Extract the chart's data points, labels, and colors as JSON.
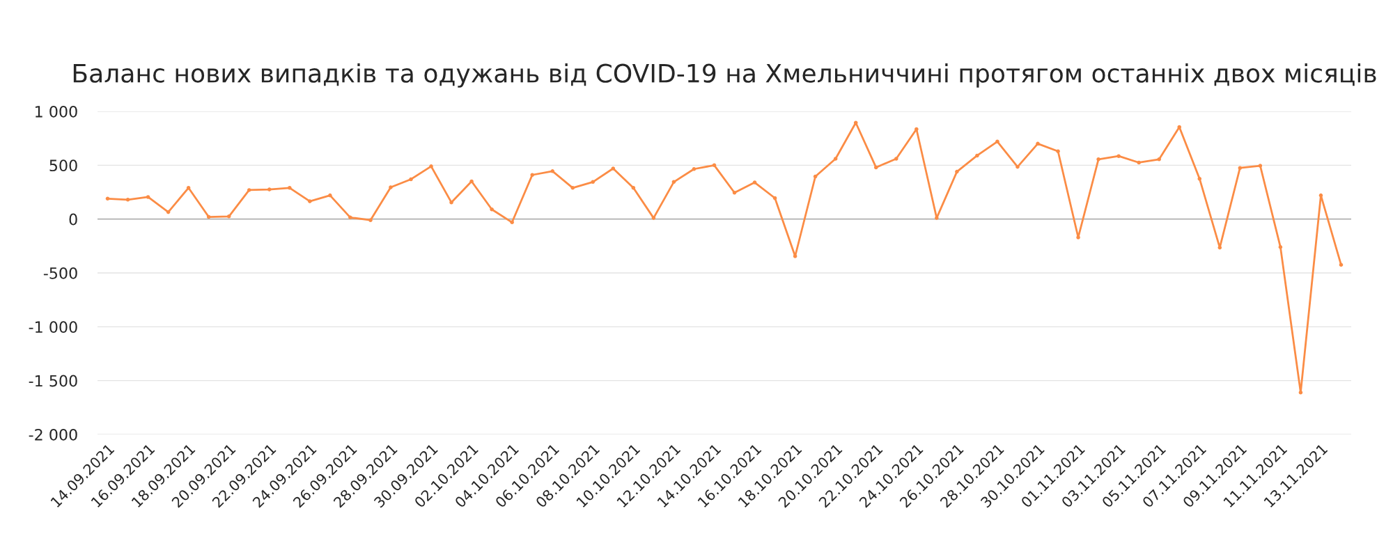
{
  "chart_data": {
    "type": "line",
    "title": "Баланс нових випадків та одужань від COVID-19 на Хмельниччині протягом останніх двох місяців",
    "categories": [
      "14.09.2021",
      null,
      "16.09.2021",
      null,
      "18.09.2021",
      null,
      "20.09.2021",
      null,
      "22.09.2021",
      null,
      "24.09.2021",
      null,
      "26.09.2021",
      null,
      "28.09.2021",
      null,
      "30.09.2021",
      null,
      "02.10.2021",
      null,
      "04.10.2021",
      null,
      "06.10.2021",
      null,
      "08.10.2021",
      null,
      "10.10.2021",
      null,
      "12.10.2021",
      null,
      "14.10.2021",
      null,
      "16.10.2021",
      null,
      "18.10.2021",
      null,
      "20.10.2021",
      null,
      "22.10.2021",
      null,
      "24.10.2021",
      null,
      "26.10.2021",
      null,
      "28.10.2021",
      null,
      "30.10.2021",
      null,
      "01.11.2021",
      null,
      "03.11.2021",
      null,
      "05.11.2021",
      null,
      "07.11.2021",
      null,
      "09.11.2021",
      null,
      "11.11.2021",
      null,
      "13.11.2021",
      null
    ],
    "series": [
      {
        "color": "#fb8c45",
        "values": [
          190,
          180,
          205,
          65,
          290,
          20,
          25,
          270,
          275,
          290,
          165,
          220,
          15,
          -10,
          295,
          370,
          490,
          155,
          350,
          90,
          -30,
          410,
          445,
          290,
          345,
          470,
          290,
          10,
          345,
          465,
          500,
          245,
          340,
          195,
          -345,
          395,
          560,
          895,
          480,
          560,
          835,
          10,
          440,
          590,
          720,
          485,
          700,
          630,
          -170,
          555,
          585,
          525,
          555,
          855,
          375,
          -265,
          475,
          495,
          -260,
          -1610,
          220,
          -425
        ]
      }
    ],
    "ylim": [
      -2000,
      1000
    ],
    "yticks": [
      {
        "value": -2000,
        "label": "-2 000"
      },
      {
        "value": -1500,
        "label": "-1 500"
      },
      {
        "value": -1000,
        "label": "-1 000"
      },
      -500,
      0,
      500,
      {
        "value": 1000,
        "label": "1 000"
      }
    ],
    "grid": "y",
    "marker": "circle",
    "line_style": "solid",
    "legend": false
  }
}
